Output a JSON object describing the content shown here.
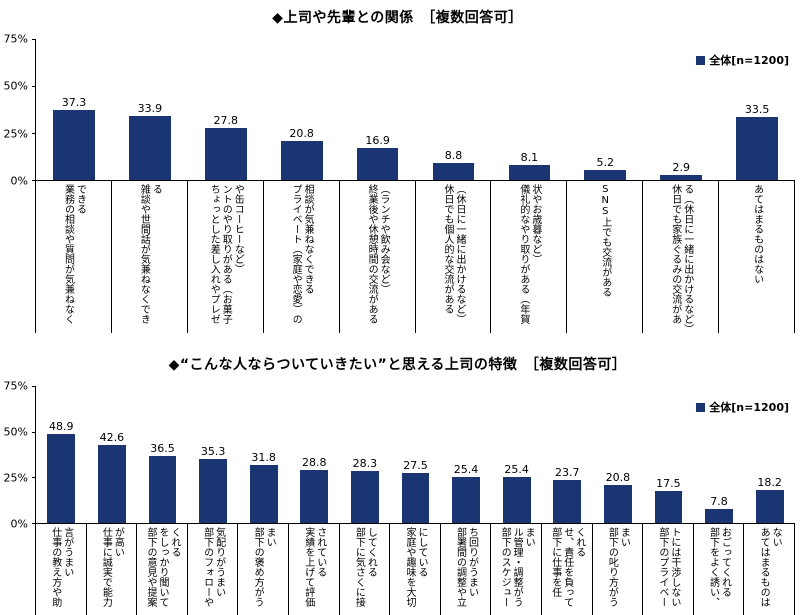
{
  "colors": {
    "bar": "#1a3672",
    "axis": "#000000",
    "text": "#000000",
    "background": "#ffffff"
  },
  "chart_data": [
    {
      "type": "bar",
      "title": "◆上司や先輩との関係　［複数回答可］",
      "legend": "全体[n=1200]",
      "legend_position": "top-right",
      "grid": false,
      "ylim": [
        0,
        75
      ],
      "y_ticks": [
        "75%",
        "50%",
        "25%",
        "0%"
      ],
      "categories": [
        "業務の相談や質問が気兼ねなくできる",
        "雑談や世間話が気兼ねなくできる",
        "ちょっとした差し入れやプレゼントのやり取りがある（お菓子や缶コーヒーなど）",
        "プライベート（家庭や恋愛）の相談が気兼ねなくできる",
        "終業後や休憩時間の交流がある（ランチや飲み会など）",
        "休日でも個人的な交流がある（休日に一緒に出かけるなど）",
        "儀礼的なやり取りがある（年賀状やお歳暮など）",
        "SNS上でも交流がある",
        "休日でも家族ぐるみの交流がある（休日に一緒に出かけるなど）",
        "あてはまるものはない"
      ],
      "values": [
        37.3,
        33.9,
        27.8,
        20.8,
        16.9,
        8.8,
        8.1,
        5.2,
        2.9,
        33.5
      ]
    },
    {
      "type": "bar",
      "title": "◆“こんな人ならついていきたい”と思える上司の特徴　［複数回答可］",
      "legend": "全体[n=1200]",
      "legend_position": "top-right",
      "grid": false,
      "ylim": [
        0,
        75
      ],
      "y_ticks": [
        "75%",
        "50%",
        "25%",
        "0%"
      ],
      "categories": [
        "仕事の教え方や助言がうまい",
        "仕事に誠実で能力が高い",
        "部下の意見や提案をしっかり聞いてくれる",
        "部下のフォローや気配りがうまい",
        "部下の褒め方がうまい",
        "実績を上げて評価されている",
        "部下に気さくに接してくれる",
        "家庭や趣味を大切にしている",
        "部署間の調整や立ち回りがうまい",
        "部下のスケジュール管理・調整がうまい",
        "部下に仕事を任せ、責任を負ってくれる",
        "部下の叱り方がうまい",
        "部下のプライベートには干渉しない",
        "部下をよく誘い、おごってくれる",
        "あてはまるものはない"
      ],
      "values": [
        48.9,
        42.6,
        36.5,
        35.3,
        31.8,
        28.8,
        28.3,
        27.5,
        25.4,
        25.4,
        23.7,
        20.8,
        17.5,
        7.8,
        18.2
      ]
    }
  ]
}
